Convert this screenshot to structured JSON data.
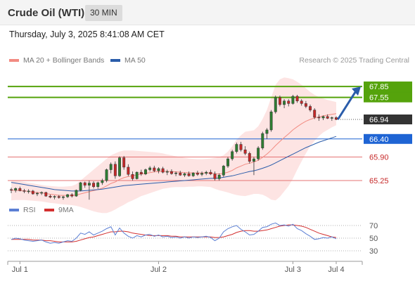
{
  "header": {
    "title": "Crude Oil (WTI)",
    "timeframe": "30 MIN"
  },
  "datetime": "Thursday, July 3, 2025 8:41:08 AM CET",
  "credit": "Research © 2025 Trading Central",
  "colors": {
    "up": "#2e7d32",
    "down": "#c62828",
    "ma20": "#f28b82",
    "ma50": "#2a5caa",
    "resistance": "#55a30c",
    "support_blue": "#1e64d4",
    "support_red": "#e57373",
    "current": "#333333",
    "rsi": "#5b7fd4",
    "rsi_ma": "#d32f2f",
    "arrow": "#2a5caa"
  },
  "chart_data": [
    {
      "type": "candlestick",
      "legend": [
        "MA 20 + Bollinger Bands",
        "MA 50"
      ],
      "legend_placement": "top-left",
      "x_ticks": [
        "Jul 1",
        "Jul 2",
        "Jul 3",
        "Jul 4"
      ],
      "ylim": [
        64.9,
        68.3
      ],
      "levels": [
        {
          "value": 67.85,
          "label": "67.85",
          "kind": "resistance"
        },
        {
          "value": 67.55,
          "label": "67.55",
          "kind": "resistance"
        },
        {
          "value": 66.94,
          "label": "66.94",
          "kind": "current"
        },
        {
          "value": 66.4,
          "label": "66.40",
          "kind": "support_blue"
        },
        {
          "value": 65.9,
          "label": "65.90",
          "kind": "support_red"
        },
        {
          "value": 65.25,
          "label": "65.25",
          "kind": "support_red"
        }
      ],
      "candles": [
        [
          65.0,
          65.05,
          64.9,
          64.98
        ],
        [
          64.98,
          65.06,
          64.92,
          65.03
        ],
        [
          65.03,
          65.08,
          64.95,
          64.97
        ],
        [
          64.97,
          65.02,
          64.9,
          64.95
        ],
        [
          64.95,
          65.01,
          64.89,
          64.96
        ],
        [
          64.96,
          64.99,
          64.86,
          64.88
        ],
        [
          64.88,
          64.93,
          64.82,
          64.9
        ],
        [
          64.9,
          64.95,
          64.85,
          64.92
        ],
        [
          64.92,
          64.94,
          64.8,
          64.82
        ],
        [
          64.82,
          64.86,
          64.76,
          64.79
        ],
        [
          64.79,
          64.84,
          64.73,
          64.81
        ],
        [
          64.81,
          64.85,
          64.75,
          64.78
        ],
        [
          64.78,
          64.83,
          64.72,
          64.8
        ],
        [
          64.8,
          64.88,
          64.77,
          64.86
        ],
        [
          64.86,
          64.9,
          64.78,
          64.82
        ],
        [
          64.82,
          65.0,
          64.8,
          64.98
        ],
        [
          64.98,
          65.21,
          64.95,
          65.19
        ],
        [
          65.19,
          65.22,
          65.05,
          65.12
        ],
        [
          65.12,
          65.25,
          64.72,
          65.18
        ],
        [
          65.18,
          65.23,
          65.03,
          65.08
        ],
        [
          65.08,
          65.22,
          65.02,
          65.19
        ],
        [
          65.19,
          65.3,
          65.13,
          65.25
        ],
        [
          65.25,
          65.58,
          65.2,
          65.55
        ],
        [
          65.55,
          65.75,
          65.45,
          65.7
        ],
        [
          65.7,
          65.78,
          65.3,
          65.38
        ],
        [
          65.38,
          65.92,
          65.35,
          65.88
        ],
        [
          65.88,
          65.93,
          65.55,
          65.62
        ],
        [
          65.62,
          65.7,
          65.37,
          65.42
        ],
        [
          65.42,
          65.5,
          65.25,
          65.3
        ],
        [
          65.3,
          65.5,
          65.28,
          65.48
        ],
        [
          65.48,
          65.55,
          65.38,
          65.43
        ],
        [
          65.43,
          65.58,
          65.4,
          65.55
        ],
        [
          65.55,
          65.65,
          65.5,
          65.6
        ],
        [
          65.6,
          65.66,
          65.48,
          65.52
        ],
        [
          65.52,
          65.62,
          65.45,
          65.58
        ],
        [
          65.58,
          65.63,
          65.45,
          65.48
        ],
        [
          65.48,
          65.55,
          65.4,
          65.5
        ],
        [
          65.5,
          65.56,
          65.41,
          65.44
        ],
        [
          65.44,
          65.5,
          65.37,
          65.46
        ],
        [
          65.46,
          65.52,
          65.38,
          65.4
        ],
        [
          65.4,
          65.47,
          65.35,
          65.44
        ],
        [
          65.44,
          65.5,
          65.36,
          65.38
        ],
        [
          65.38,
          65.48,
          65.35,
          65.46
        ],
        [
          65.46,
          65.52,
          65.38,
          65.42
        ],
        [
          65.42,
          65.5,
          65.37,
          65.45
        ],
        [
          65.45,
          65.52,
          65.4,
          65.48
        ],
        [
          65.48,
          65.55,
          65.4,
          65.43
        ],
        [
          65.43,
          65.5,
          65.25,
          65.3
        ],
        [
          65.3,
          65.45,
          65.25,
          65.4
        ],
        [
          65.4,
          65.68,
          65.35,
          65.65
        ],
        [
          65.65,
          65.9,
          65.6,
          65.85
        ],
        [
          65.85,
          66.1,
          65.8,
          66.05
        ],
        [
          66.05,
          66.3,
          66.0,
          66.25
        ],
        [
          66.25,
          66.32,
          66.05,
          66.1
        ],
        [
          66.1,
          66.2,
          65.95,
          66.0
        ],
        [
          66.0,
          66.05,
          65.72,
          65.78
        ],
        [
          65.78,
          65.9,
          65.4,
          65.85
        ],
        [
          65.85,
          66.2,
          65.8,
          66.15
        ],
        [
          66.15,
          66.6,
          66.1,
          66.55
        ],
        [
          66.55,
          66.7,
          66.4,
          66.65
        ],
        [
          66.65,
          67.2,
          66.6,
          67.15
        ],
        [
          67.15,
          67.6,
          67.1,
          67.55
        ],
        [
          67.55,
          67.6,
          67.3,
          67.35
        ],
        [
          67.35,
          67.5,
          67.25,
          67.45
        ],
        [
          67.45,
          67.5,
          67.3,
          67.38
        ],
        [
          67.38,
          67.62,
          67.35,
          67.58
        ],
        [
          67.58,
          67.62,
          67.4,
          67.45
        ],
        [
          67.45,
          67.5,
          67.32,
          67.38
        ],
        [
          67.38,
          67.45,
          67.25,
          67.3
        ],
        [
          67.3,
          67.35,
          67.15,
          67.2
        ],
        [
          67.2,
          67.25,
          66.95,
          67.0
        ],
        [
          67.0,
          67.08,
          66.9,
          66.98
        ],
        [
          66.98,
          67.05,
          66.92,
          67.02
        ],
        [
          67.02,
          67.08,
          66.95,
          66.97
        ],
        [
          66.97,
          67.02,
          66.9,
          66.99
        ],
        [
          66.99,
          67.03,
          66.92,
          66.94
        ]
      ],
      "ma20": [
        64.98,
        64.98,
        64.97,
        64.96,
        64.95,
        64.93,
        64.92,
        64.91,
        64.89,
        64.87,
        64.86,
        64.84,
        64.84,
        64.84,
        64.84,
        64.85,
        64.88,
        64.91,
        64.94,
        64.97,
        65.0,
        65.04,
        65.1,
        65.17,
        65.21,
        65.28,
        65.33,
        65.36,
        65.38,
        65.41,
        65.43,
        65.45,
        65.47,
        65.49,
        65.5,
        65.51,
        65.5,
        65.5,
        65.49,
        65.48,
        65.47,
        65.47,
        65.46,
        65.46,
        65.46,
        65.46,
        65.46,
        65.44,
        65.43,
        65.45,
        65.48,
        65.53,
        65.6,
        65.65,
        65.7,
        65.73,
        65.76,
        65.81,
        65.89,
        65.98,
        66.09,
        66.22,
        66.33,
        66.44,
        66.54,
        66.65,
        66.74,
        66.82,
        66.89,
        66.94,
        66.98,
        67.01,
        67.04,
        67.06,
        67.08,
        67.1
      ],
      "bb_upper": [
        65.25,
        65.24,
        65.23,
        65.21,
        65.19,
        65.17,
        65.15,
        65.13,
        65.11,
        65.1,
        65.09,
        65.08,
        65.08,
        65.09,
        65.1,
        65.15,
        65.25,
        65.35,
        65.45,
        65.55,
        65.65,
        65.75,
        65.85,
        65.95,
        66.0,
        66.05,
        66.08,
        66.08,
        66.08,
        66.07,
        66.06,
        66.05,
        66.04,
        66.03,
        66.02,
        66.0,
        65.97,
        65.95,
        65.92,
        65.9,
        65.88,
        65.86,
        65.85,
        65.84,
        65.84,
        65.85,
        65.86,
        65.88,
        65.9,
        65.95,
        66.05,
        66.2,
        66.38,
        66.5,
        66.6,
        66.62,
        66.64,
        66.75,
        66.95,
        67.2,
        67.55,
        67.9,
        68.05,
        68.1,
        68.08,
        68.05,
        67.98,
        67.9,
        67.8,
        67.7,
        67.62,
        67.56,
        67.52,
        67.48,
        67.45,
        67.42
      ],
      "bb_lower": [
        64.7,
        64.71,
        64.71,
        64.71,
        64.7,
        64.69,
        64.68,
        64.67,
        64.65,
        64.63,
        64.62,
        64.6,
        64.59,
        64.58,
        64.57,
        64.55,
        64.52,
        64.48,
        64.44,
        64.4,
        64.37,
        64.35,
        64.35,
        64.39,
        64.45,
        64.52,
        64.58,
        64.65,
        64.7,
        64.76,
        64.82,
        64.86,
        64.9,
        64.94,
        64.98,
        65.02,
        65.04,
        65.06,
        65.07,
        65.07,
        65.07,
        65.08,
        65.08,
        65.09,
        65.09,
        65.08,
        65.07,
        65.02,
        64.98,
        64.95,
        64.92,
        64.88,
        64.85,
        64.83,
        64.82,
        64.85,
        64.88,
        64.88,
        64.86,
        64.8,
        64.72,
        64.7,
        64.8,
        64.95,
        65.1,
        65.3,
        65.55,
        65.78,
        66.0,
        66.2,
        66.35,
        66.48,
        66.58,
        66.65,
        66.72,
        66.78
      ],
      "ma50": [
        65.2,
        65.18,
        65.16,
        65.14,
        65.12,
        65.1,
        65.08,
        65.06,
        65.04,
        65.02,
        65.0,
        64.99,
        64.98,
        64.97,
        64.96,
        64.96,
        64.96,
        64.97,
        64.98,
        64.99,
        65.0,
        65.01,
        65.03,
        65.05,
        65.07,
        65.09,
        65.11,
        65.12,
        65.13,
        65.14,
        65.15,
        65.16,
        65.17,
        65.18,
        65.19,
        65.2,
        65.21,
        65.22,
        65.23,
        65.24,
        65.25,
        65.26,
        65.27,
        65.28,
        65.29,
        65.3,
        65.31,
        65.31,
        65.32,
        65.34,
        65.36,
        65.38,
        65.41,
        65.44,
        65.47,
        65.5,
        65.52,
        65.55,
        65.59,
        65.63,
        65.68,
        65.74,
        65.8,
        65.86,
        65.92,
        65.98,
        66.04,
        66.1,
        66.16,
        66.21,
        66.26,
        66.31,
        66.35,
        66.39,
        66.43,
        66.47
      ]
    },
    {
      "type": "line",
      "legend": [
        "RSI",
        "9MA"
      ],
      "legend_placement": "top-left",
      "ylim": [
        20,
        80
      ],
      "y_ticks": [
        "70",
        "50",
        "30"
      ],
      "rsi": [
        48,
        50,
        49,
        47,
        46,
        45,
        46,
        47,
        44,
        42,
        43,
        42,
        44,
        46,
        45,
        50,
        58,
        56,
        60,
        55,
        58,
        61,
        65,
        68,
        55,
        66,
        58,
        53,
        50,
        54,
        52,
        55,
        56,
        53,
        55,
        52,
        53,
        51,
        52,
        50,
        52,
        50,
        52,
        51,
        52,
        53,
        51,
        46,
        50,
        60,
        65,
        68,
        70,
        64,
        60,
        55,
        56,
        61,
        67,
        68,
        72,
        74,
        70,
        71,
        69,
        72,
        65,
        62,
        57,
        53,
        48,
        49,
        51,
        50,
        52,
        49
      ],
      "rsi_ma": [
        48,
        48,
        48,
        48,
        48,
        47,
        47,
        47,
        46,
        46,
        45,
        44,
        44,
        44,
        44,
        45,
        47,
        49,
        51,
        52,
        54,
        56,
        58,
        60,
        60,
        61,
        61,
        60,
        58,
        57,
        56,
        55,
        54,
        54,
        54,
        54,
        54,
        53,
        53,
        52,
        52,
        52,
        52,
        52,
        52,
        52,
        52,
        51,
        51,
        52,
        54,
        56,
        59,
        61,
        62,
        62,
        61,
        61,
        62,
        63,
        65,
        67,
        69,
        70,
        71,
        71,
        70,
        69,
        67,
        64,
        61,
        58,
        56,
        54,
        52,
        51
      ]
    }
  ]
}
